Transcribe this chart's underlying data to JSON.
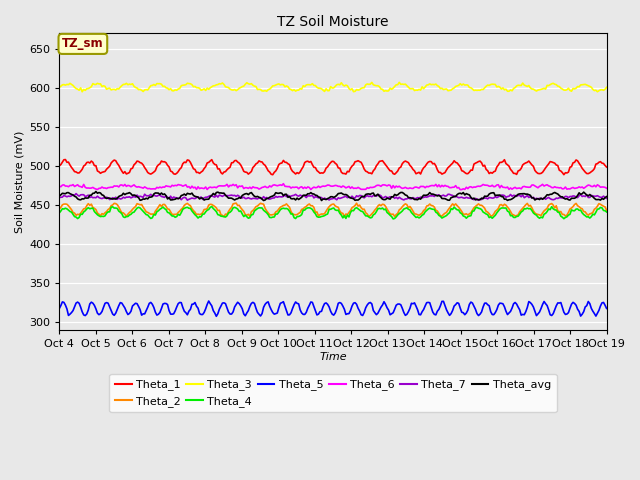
{
  "title": "TZ Soil Moisture",
  "xlabel": "Time",
  "ylabel": "Soil Moisture (mV)",
  "ylim": [
    290,
    670
  ],
  "yticks": [
    300,
    350,
    400,
    450,
    500,
    550,
    600,
    650
  ],
  "bg_color": "#e8e8e8",
  "legend_label": "TZ_sm",
  "series_order": [
    "Theta_1",
    "Theta_2",
    "Theta_3",
    "Theta_4",
    "Theta_5",
    "Theta_6",
    "Theta_7",
    "Theta_avg"
  ],
  "series": {
    "Theta_1": {
      "color": "#ff0000",
      "base": 498,
      "amplitude": 8,
      "trend": -0.02,
      "freq": 1.5
    },
    "Theta_2": {
      "color": "#ff8800",
      "base": 444,
      "amplitude": 7,
      "trend": -0.025,
      "freq": 1.5
    },
    "Theta_3": {
      "color": "#ffff00",
      "base": 601,
      "amplitude": 4,
      "trend": -0.07,
      "freq": 1.2
    },
    "Theta_4": {
      "color": "#00ee00",
      "base": 440,
      "amplitude": 6,
      "trend": -0.025,
      "freq": 1.5
    },
    "Theta_5": {
      "color": "#0000ff",
      "base": 317,
      "amplitude": 8,
      "trend": 0.0,
      "freq": 2.5
    },
    "Theta_6": {
      "color": "#ff00ff",
      "base": 473,
      "amplitude": 2,
      "trend": -0.02,
      "freq": 0.7
    },
    "Theta_7": {
      "color": "#9900cc",
      "base": 460,
      "amplitude": 2,
      "trend": -0.025,
      "freq": 0.5
    },
    "Theta_avg": {
      "color": "#000000",
      "base": 461,
      "amplitude": 4,
      "trend": -0.025,
      "freq": 1.2
    }
  },
  "n_points": 360,
  "x_start": 4,
  "x_end": 19,
  "xtick_positions": [
    4,
    5,
    6,
    7,
    8,
    9,
    10,
    11,
    12,
    13,
    14,
    15,
    16,
    17,
    18,
    19
  ],
  "xtick_labels": [
    "Oct 4",
    "Oct 5",
    "Oct 6",
    "Oct 7",
    "Oct 8",
    "Oct 9",
    "Oct 10",
    "Oct 11",
    "Oct 12",
    "Oct 13",
    "Oct 14",
    "Oct 15",
    "Oct 16",
    "Oct 17",
    "Oct 18",
    "Oct 19"
  ]
}
